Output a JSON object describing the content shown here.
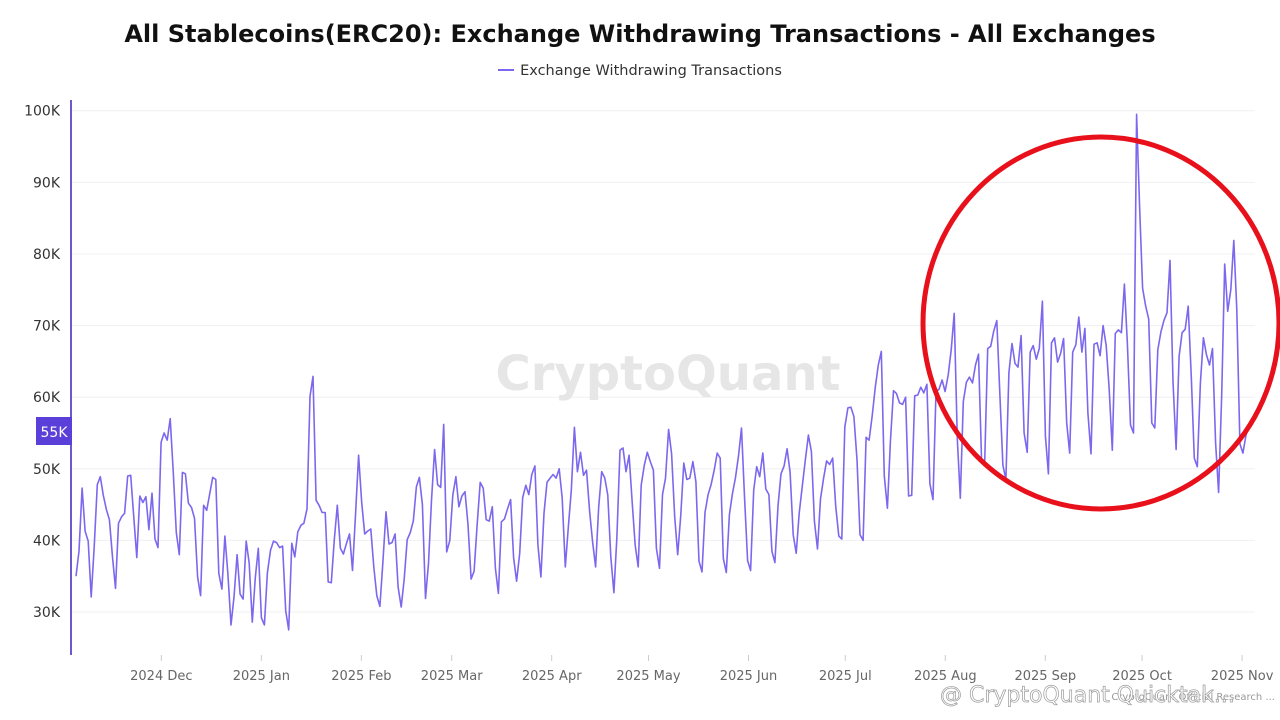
{
  "chart_data": {
    "type": "line",
    "title": "All Stablecoins(ERC20): Exchange Withdrawing Transactions - All Exchanges",
    "xlabel": "",
    "ylabel": "",
    "legend": "top-center",
    "grid": "horizontal",
    "ylim": [
      24000,
      101500
    ],
    "yticks": [
      "30K",
      "40K",
      "50K",
      "60K",
      "70K",
      "80K",
      "90K",
      "100K"
    ],
    "ytick_values": [
      30000,
      40000,
      50000,
      60000,
      70000,
      80000,
      90000,
      100000
    ],
    "xticks": [
      {
        "label": "2024 Dec",
        "date": "2024-12-01"
      },
      {
        "label": "2025 Jan",
        "date": "2025-01-01"
      },
      {
        "label": "2025 Feb",
        "date": "2025-02-01"
      },
      {
        "label": "2025 Mar",
        "date": "2025-03-01"
      },
      {
        "label": "2025 Apr",
        "date": "2025-04-01"
      },
      {
        "label": "2025 May",
        "date": "2025-05-01"
      },
      {
        "label": "2025 Jun",
        "date": "2025-06-01"
      },
      {
        "label": "2025 Jul",
        "date": "2025-07-01"
      },
      {
        "label": "2025 Aug",
        "date": "2025-08-01"
      },
      {
        "label": "2025 Sep",
        "date": "2025-09-01"
      },
      {
        "label": "2025 Oct",
        "date": "2025-10-01"
      },
      {
        "label": "2025 Nov",
        "date": "2025-11-01"
      }
    ],
    "x_start": "2024-11-03",
    "x_end": "2025-11-05",
    "current_value_label": "55K",
    "series": [
      {
        "name": "Exchange Withdrawing Transactions",
        "color": "#7b68ee",
        "values": [
          35000,
          38500,
          47300,
          41300,
          39900,
          32100,
          39100,
          47800,
          48900,
          46300,
          44300,
          42900,
          37700,
          33300,
          42400,
          43300,
          43800,
          49000,
          49100,
          43400,
          37600,
          46200,
          45300,
          46100,
          41500,
          46600,
          40200,
          39000,
          53700,
          55000,
          54000,
          57000,
          49700,
          41100,
          38000,
          49500,
          49300,
          45200,
          44600,
          43100,
          34900,
          32300,
          44900,
          44200,
          46500,
          48800,
          48500,
          35400,
          33200,
          40600,
          35300,
          28200,
          32100,
          38000,
          32500,
          31800,
          39900,
          36800,
          28600,
          34800,
          38900,
          29200,
          28200,
          35500,
          38600,
          39900,
          39700,
          39000,
          39200,
          30200,
          27500,
          39600,
          37700,
          41200,
          42100,
          42400,
          44400,
          60100,
          62900,
          45600,
          44900,
          43900,
          43900,
          34200,
          34100,
          40100,
          44900,
          38900,
          38100,
          39600,
          40900,
          35800,
          43800,
          51900,
          45300,
          40900,
          41300,
          41600,
          36300,
          32300,
          30800,
          37000,
          44000,
          39500,
          39700,
          40900,
          33500,
          30700,
          34600,
          40100,
          41100,
          42700,
          47500,
          48800,
          45000,
          31900,
          36800,
          45600,
          52700,
          47800,
          47400,
          56200,
          38400,
          40000,
          46300,
          48900,
          44700,
          46200,
          46800,
          42200,
          34600,
          35700,
          42100,
          48100,
          47300,
          42900,
          42700,
          44700,
          36100,
          32600,
          42600,
          43000,
          44400,
          45700,
          37600,
          34300,
          38200,
          46000,
          47700,
          46400,
          49200,
          50400,
          39400,
          34900,
          43800,
          48100,
          48700,
          49200,
          48700,
          50000,
          45900,
          36300,
          41800,
          47000,
          55800,
          49600,
          52300,
          49100,
          49800,
          44100,
          39800,
          36300,
          44700,
          49600,
          48700,
          46300,
          37700,
          32700,
          40500,
          52600,
          52900,
          49600,
          51900,
          45500,
          39300,
          36300,
          47700,
          50500,
          52300,
          51000,
          49800,
          38900,
          36100,
          46400,
          48700,
          55500,
          52100,
          43300,
          38000,
          43400,
          50800,
          48500,
          48700,
          51000,
          48200,
          37100,
          35600,
          43900,
          46400,
          47800,
          49800,
          52200,
          51500,
          37500,
          35500,
          43600,
          46500,
          48700,
          51800,
          55700,
          46100,
          37200,
          35800,
          47000,
          50300,
          48900,
          52200,
          47200,
          46400,
          38500,
          36900,
          44800,
          49300,
          50400,
          52800,
          49500,
          40800,
          38200,
          43800,
          47600,
          51200,
          54700,
          52400,
          42700,
          38800,
          45800,
          48700,
          51100,
          50600,
          51500,
          44800,
          40600,
          40200,
          55800,
          58500,
          58600,
          57300,
          51300,
          40800,
          40000,
          54400,
          54000,
          57400,
          61300,
          64500,
          66400,
          49000,
          44500,
          53800,
          60900,
          60500,
          59200,
          59000,
          60000,
          46200,
          46300,
          60200,
          60300,
          61400,
          60600,
          61800,
          47900,
          45700,
          60800,
          61100,
          62400,
          60800,
          63100,
          66600,
          71700,
          54200,
          45900,
          59400,
          62100,
          62800,
          62000,
          64500,
          66000,
          51000,
          50400,
          66800,
          67100,
          69200,
          70700,
          60600,
          50500,
          48500,
          63400,
          67500,
          64700,
          64200,
          68600,
          55000,
          52300,
          66300,
          67200,
          65300,
          66800,
          73400,
          54600,
          49300,
          67600,
          68300,
          64900,
          66100,
          68200,
          56400,
          52200,
          66300,
          67300,
          71200,
          66300,
          69600,
          57800,
          52100,
          67400,
          67600,
          65800,
          70000,
          67200,
          61100,
          52600,
          68900,
          69400,
          69000,
          75800,
          67400,
          56100,
          55000,
          99500,
          86600,
          75200,
          72700,
          70900,
          56400,
          55700,
          66600,
          69100,
          70700,
          71800,
          79100,
          62200,
          52700,
          65700,
          69000,
          69500,
          72700,
          62800,
          51500,
          50300,
          62000,
          68300,
          65900,
          64500,
          66800,
          53600,
          46700,
          60300,
          78600,
          72000,
          75000,
          81900,
          72200,
          53500,
          52200,
          54700,
          56000
        ]
      }
    ]
  },
  "watermark": "CryptoQuant",
  "footer": {
    "handle": "@ CryptoQuant Quicktak...",
    "source_note": "CryptoQuant Official Research ..."
  },
  "annotation": {
    "shape": "circle",
    "color": "#e8111b"
  },
  "colors": {
    "line": "#7b68ee",
    "axis": "#6a5acd",
    "badge": "#5b3fd9",
    "grid": "#f0f0f0",
    "annotation": "#e8111b"
  }
}
